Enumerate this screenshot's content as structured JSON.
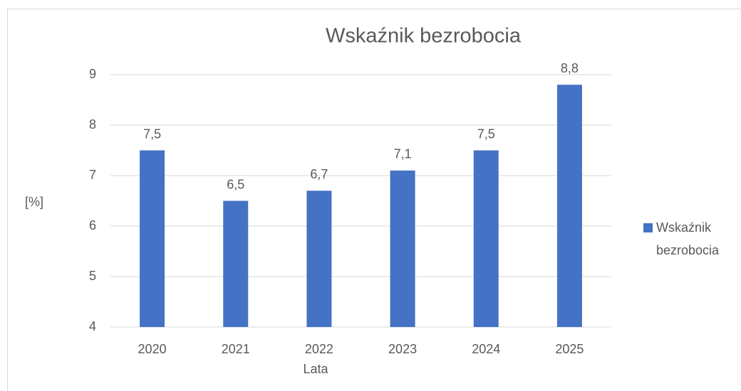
{
  "chart_data": {
    "type": "bar",
    "title": "Wskaźnik bezrobocia",
    "xlabel": "Lata",
    "ylabel": "[%]",
    "categories": [
      "2020",
      "2021",
      "2022",
      "2023",
      "2024",
      "2025"
    ],
    "series": [
      {
        "name": "Wskaźnik bezrobocia",
        "color": "#4472c4",
        "values": [
          7.5,
          6.5,
          6.7,
          7.1,
          7.5,
          8.8
        ],
        "value_labels": [
          "7,5",
          "6,5",
          "6,7",
          "7,1",
          "7,5",
          "8,8"
        ]
      }
    ],
    "ylim": [
      4,
      9
    ],
    "yticks": [
      4,
      5,
      6,
      7,
      8,
      9
    ],
    "grid": true,
    "legend": "right"
  }
}
